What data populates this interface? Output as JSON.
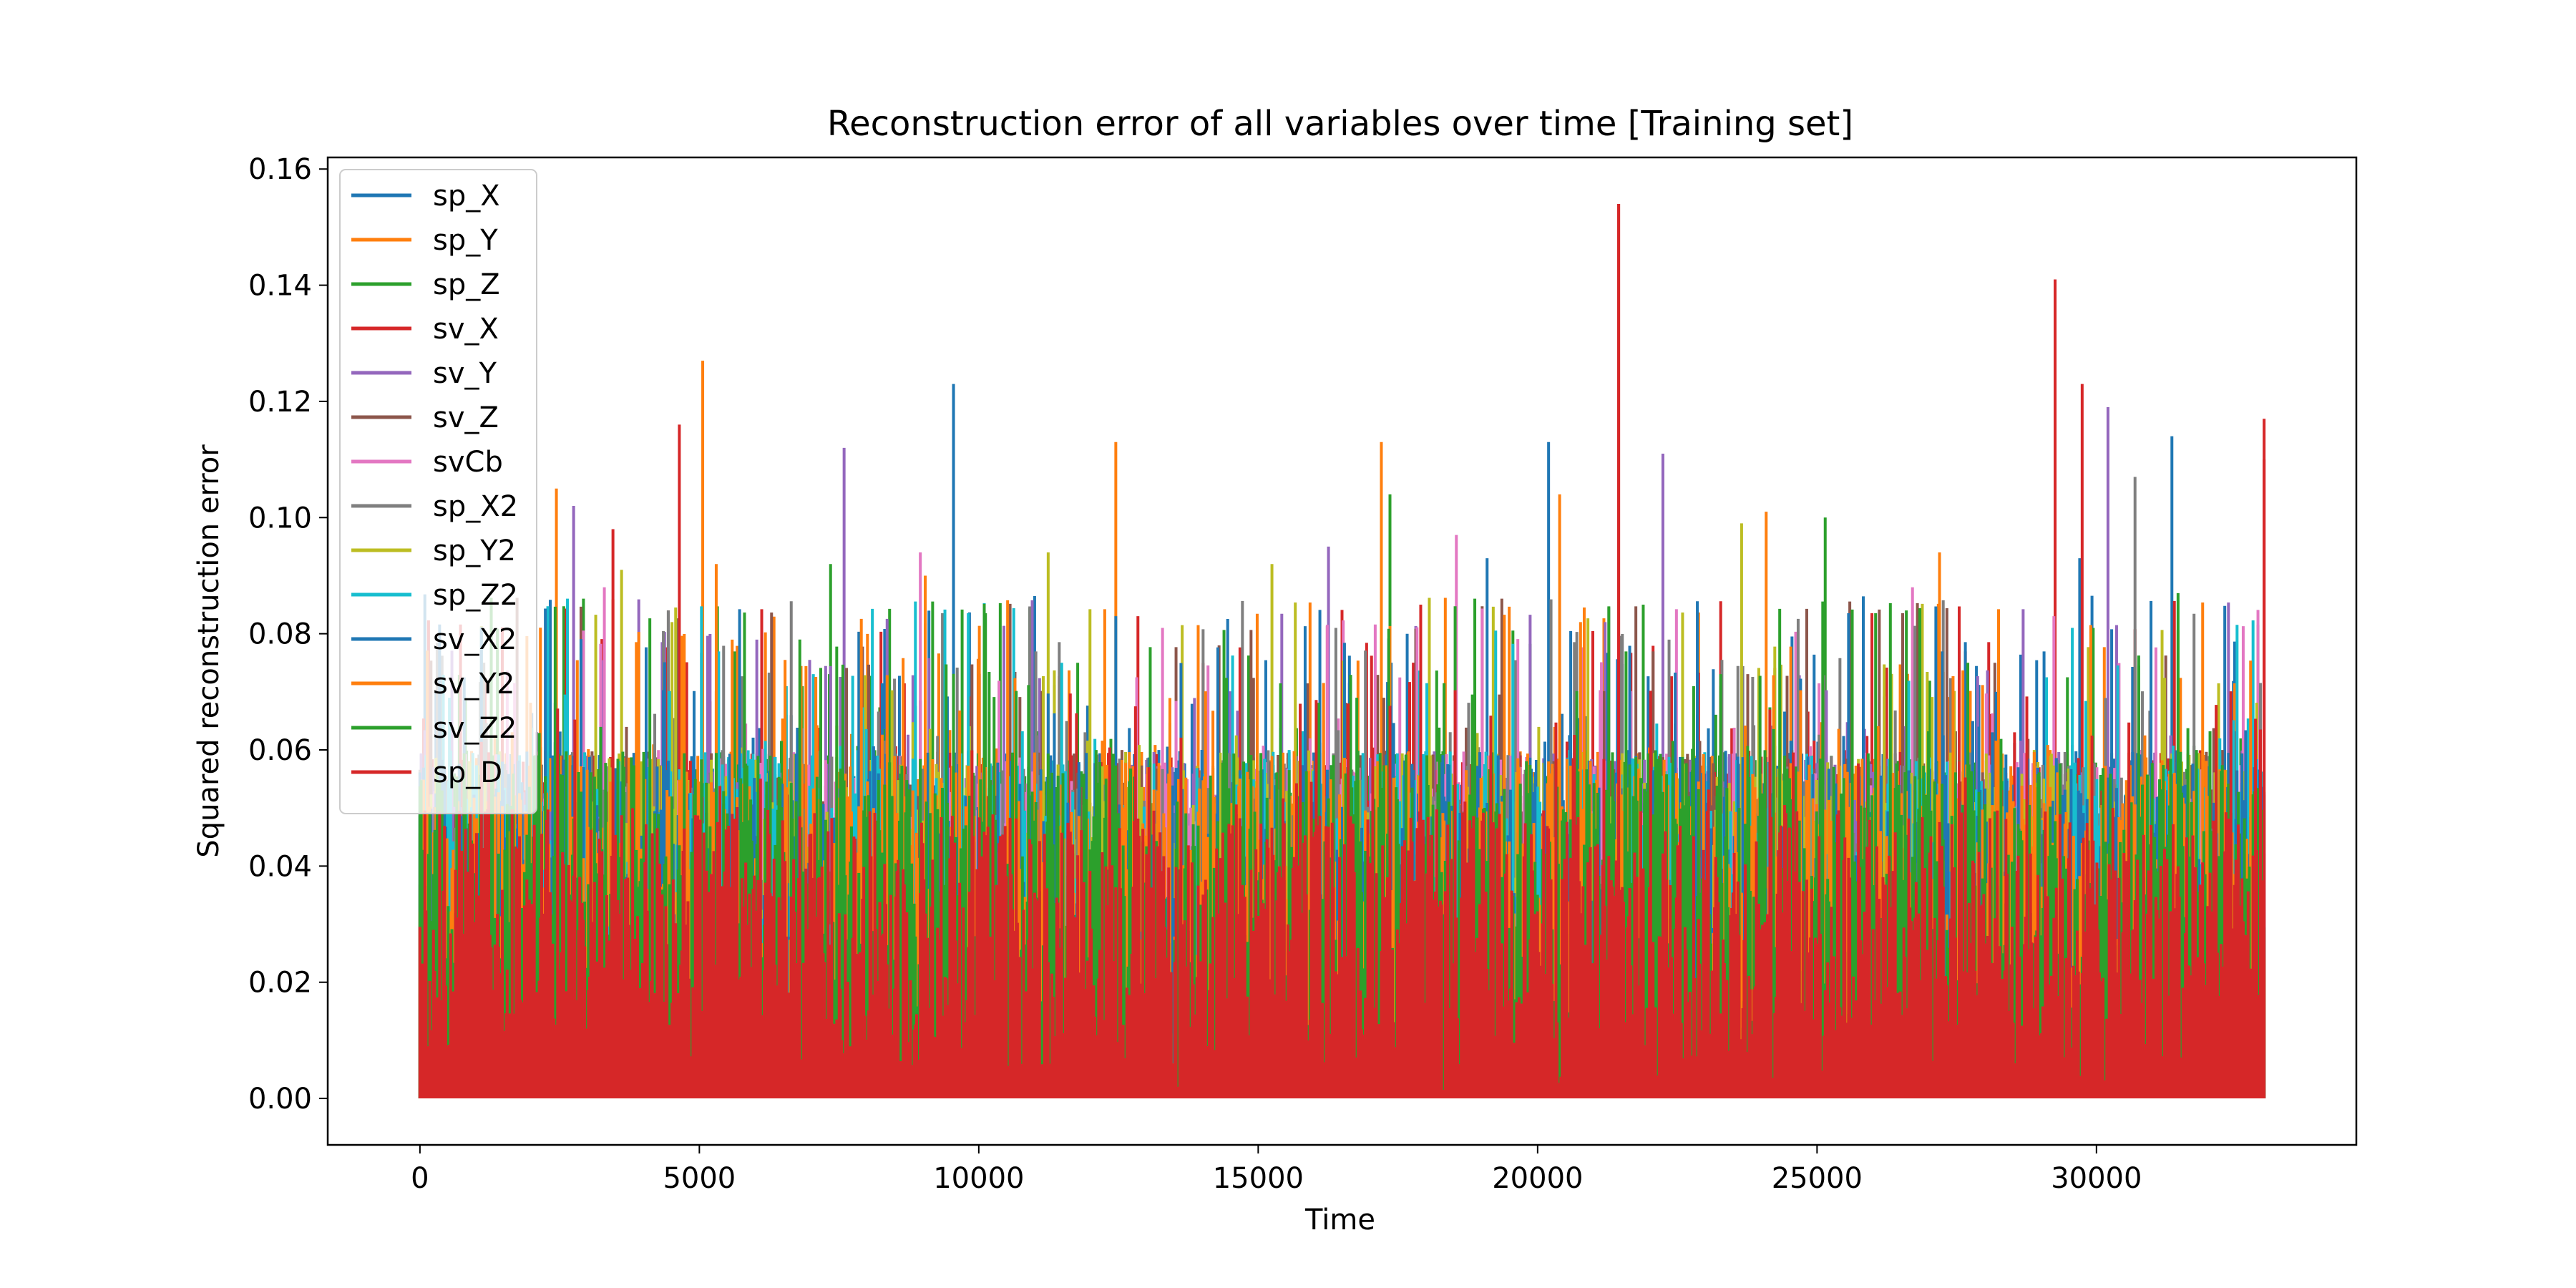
{
  "chart_data": {
    "type": "line",
    "title": "Reconstruction error of all variables over time [Training set]",
    "xlabel": "Time",
    "ylabel": "Squared reconstruction error",
    "xlim": [
      -1650,
      34650
    ],
    "ylim": [
      -0.008,
      0.162
    ],
    "xticks": [
      0,
      5000,
      10000,
      15000,
      20000,
      25000,
      30000
    ],
    "xtick_labels": [
      "0",
      "5000",
      "10000",
      "15000",
      "20000",
      "25000",
      "30000"
    ],
    "yticks": [
      0.0,
      0.02,
      0.04,
      0.06,
      0.08,
      0.1,
      0.12,
      0.14,
      0.16
    ],
    "ytick_labels": [
      "0.00",
      "0.02",
      "0.04",
      "0.06",
      "0.08",
      "0.10",
      "0.12",
      "0.14",
      "0.16"
    ],
    "grid": false,
    "legend_position": "top-left",
    "x_range": [
      0,
      33000
    ],
    "series": [
      {
        "name": "sp_X",
        "color": "#1f77b4",
        "peaks": [
          [
            9550,
            0.123
          ],
          [
            20200,
            0.113
          ],
          [
            31350,
            0.114
          ],
          [
            29700,
            0.093
          ],
          [
            19100,
            0.093
          ]
        ]
      },
      {
        "name": "sp_Y",
        "color": "#ff7f0e",
        "peaks": [
          [
            5050,
            0.127
          ],
          [
            12450,
            0.113
          ],
          [
            17200,
            0.113
          ],
          [
            2450,
            0.105
          ],
          [
            24100,
            0.101
          ]
        ]
      },
      {
        "name": "sp_Z",
        "color": "#2ca02c",
        "peaks": [
          [
            17350,
            0.104
          ],
          [
            25150,
            0.1
          ],
          [
            7350,
            0.092
          ],
          [
            21900,
            0.085
          ],
          [
            26600,
            0.084
          ]
        ]
      },
      {
        "name": "sv_X",
        "color": "#d62728",
        "peaks": [
          [
            21450,
            0.154
          ],
          [
            29250,
            0.141
          ],
          [
            29750,
            0.123
          ],
          [
            33000,
            0.117
          ],
          [
            4650,
            0.116
          ]
        ]
      },
      {
        "name": "sv_Y",
        "color": "#9467bd",
        "peaks": [
          [
            30200,
            0.119
          ],
          [
            7600,
            0.112
          ],
          [
            22250,
            0.111
          ],
          [
            2750,
            0.102
          ],
          [
            16250,
            0.095
          ]
        ]
      },
      {
        "name": "sv_Z",
        "color": "#8c564b",
        "peaks": [
          [
            4450,
            0.084
          ],
          [
            14300,
            0.078
          ]
        ]
      },
      {
        "name": "svCb",
        "color": "#e377c2",
        "peaks": [
          [
            18550,
            0.097
          ],
          [
            8950,
            0.094
          ],
          [
            26700,
            0.088
          ],
          [
            3300,
            0.088
          ]
        ]
      },
      {
        "name": "sp_X2",
        "color": "#7f7f7f",
        "peaks": [
          [
            30700,
            0.107
          ],
          [
            4450,
            0.084
          ],
          [
            16400,
            0.081
          ]
        ]
      },
      {
        "name": "sp_Y2",
        "color": "#bcbd22",
        "peaks": [
          [
            23650,
            0.099
          ],
          [
            11250,
            0.094
          ],
          [
            15250,
            0.092
          ],
          [
            3600,
            0.091
          ]
        ]
      },
      {
        "name": "sp_Z2",
        "color": "#17becf",
        "peaks": [
          [
            10000,
            0.06
          ]
        ]
      },
      {
        "name": "sv_X2",
        "color": "#1f77b4",
        "peaks": [
          [
            27900,
            0.064
          ],
          [
            28200,
            0.07
          ]
        ]
      },
      {
        "name": "sv_Y2",
        "color": "#ff7f0e",
        "peaks": [
          [
            20400,
            0.104
          ],
          [
            27200,
            0.094
          ],
          [
            9050,
            0.09
          ],
          [
            5300,
            0.092
          ]
        ]
      },
      {
        "name": "sv_Z2",
        "color": "#2ca02c",
        "peaks": [
          [
            31450,
            0.087
          ],
          [
            6800,
            0.079
          ]
        ]
      },
      {
        "name": "sp_D",
        "color": "#d62728",
        "peaks": [
          [
            21450,
            0.154
          ],
          [
            3450,
            0.098
          ],
          [
            17900,
            0.085
          ],
          [
            33000,
            0.11
          ]
        ]
      }
    ]
  }
}
